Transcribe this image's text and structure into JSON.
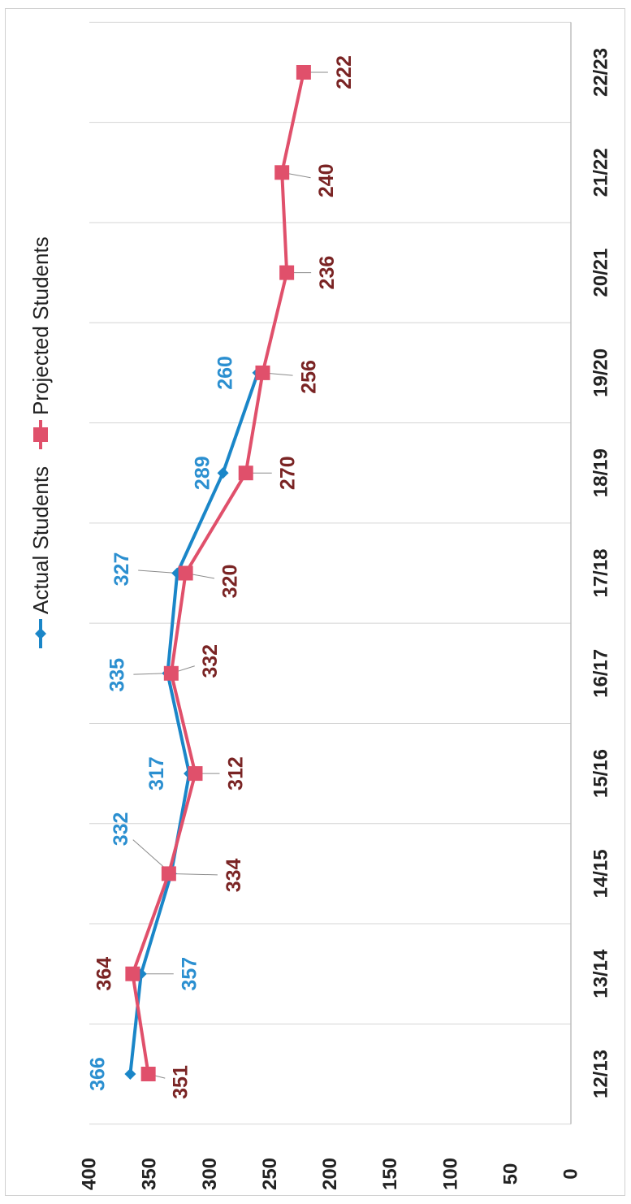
{
  "chart_data": {
    "type": "line",
    "orientation": "rotated-90-clockwise",
    "categories": [
      "12/13",
      "13/14",
      "14/15",
      "15/16",
      "16/17",
      "17/18",
      "18/19",
      "19/20",
      "20/21",
      "21/22",
      "22/23"
    ],
    "ylim": [
      0,
      400
    ],
    "yticks": [
      0,
      50,
      100,
      150,
      200,
      250,
      300,
      350,
      400
    ],
    "grid": true,
    "legend_position": "top",
    "series": [
      {
        "name": "Actual Students",
        "color": "#1a86c8",
        "label_color": "#2b8fd0",
        "marker": "diamond",
        "values": [
          366,
          357,
          332,
          317,
          335,
          327,
          289,
          260,
          null,
          null,
          null
        ]
      },
      {
        "name": "Projected Students",
        "color": "#e0506b",
        "label_color": "#7a2424",
        "marker": "square",
        "values": [
          351,
          364,
          334,
          312,
          332,
          320,
          270,
          256,
          236,
          240,
          222
        ]
      }
    ]
  }
}
